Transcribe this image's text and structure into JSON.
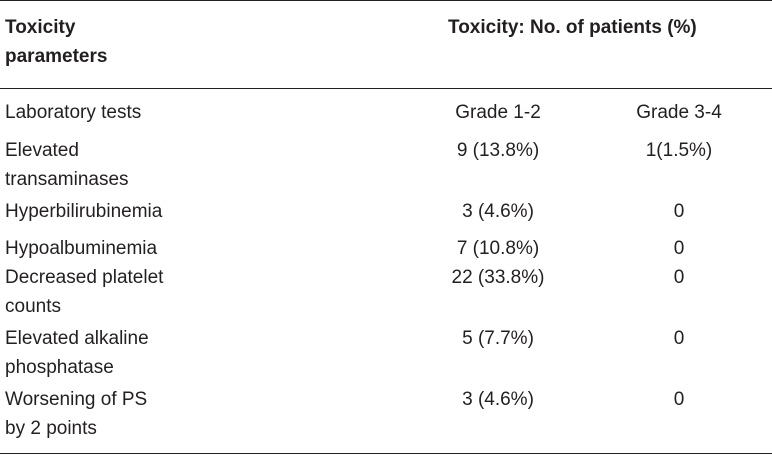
{
  "header": {
    "param_line1": "Toxicity",
    "param_line2": "parameters",
    "toxicity": "Toxicity: No. of patients (%)"
  },
  "subheader": {
    "label": "Laboratory tests",
    "grade12": "Grade 1-2",
    "grade34": "Grade 3-4"
  },
  "rows": [
    {
      "line1": "Elevated",
      "line2": "transaminases",
      "grade12": "9 (13.8%)",
      "grade34": "1(1.5%)"
    },
    {
      "line1": "Hyperbilirubinemia",
      "line2": "",
      "grade12": "3 (4.6%)",
      "grade34": "0"
    },
    {
      "line1": "Hypoalbuminemia",
      "line2": "",
      "grade12": "7 (10.8%)",
      "grade34": "0"
    },
    {
      "line1": "Decreased platelet",
      "line2": "counts",
      "grade12": "22 (33.8%)",
      "grade34": "0"
    },
    {
      "line1": "Elevated alkaline",
      "line2": "phosphatase",
      "grade12": "5 (7.7%)",
      "grade34": "0"
    },
    {
      "line1": "Worsening of PS",
      "line2": "by 2 points",
      "grade12": "3 (4.6%)",
      "grade34": "0"
    }
  ]
}
